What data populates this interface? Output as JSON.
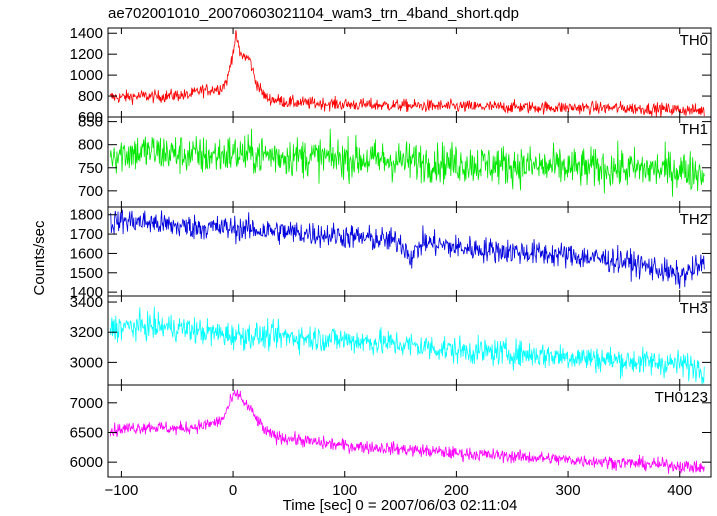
{
  "chart_data": {
    "type": "line",
    "title": "ae702001010_20070603021104_wam3_trn_4band_short.qdp",
    "xlabel": "Time [sec] 0 = 2007/06/03 02:11:04",
    "ylabel": "Counts/sec",
    "xlim": [
      -112,
      428
    ],
    "x_ticks": [
      -100,
      0,
      100,
      200,
      300,
      400
    ],
    "x_tick_labels": [
      "−100",
      "0",
      "100",
      "200",
      "300",
      "400"
    ],
    "panels": [
      {
        "name": "TH0",
        "color": "#ff0000",
        "ylim": [
          600,
          1450
        ],
        "y_ticks": [
          600,
          800,
          1000,
          1200,
          1400
        ],
        "y_tick_labels": [
          "600",
          "800",
          "1000",
          "1200",
          "1400"
        ],
        "x": [
          -110,
          -100,
          -90,
          -80,
          -70,
          -60,
          -50,
          -40,
          -30,
          -20,
          -10,
          -5,
          0,
          3,
          6,
          10,
          15,
          20,
          25,
          30,
          40,
          50,
          75,
          100,
          150,
          200,
          250,
          300,
          350,
          400,
          420
        ],
        "values": [
          790,
          790,
          795,
          800,
          795,
          800,
          810,
          805,
          850,
          860,
          880,
          960,
          1230,
          1380,
          1200,
          1180,
          1150,
          950,
          850,
          780,
          760,
          740,
          730,
          720,
          710,
          700,
          695,
          690,
          685,
          670,
          660
        ]
      },
      {
        "name": "TH1",
        "color": "#00e800",
        "ylim": [
          665,
          860
        ],
        "y_ticks": [
          700,
          750,
          800,
          850
        ],
        "y_tick_labels": [
          "700",
          "750",
          "800",
          "850"
        ],
        "x": [
          -110,
          -75,
          -50,
          -25,
          0,
          25,
          50,
          100,
          150,
          200,
          250,
          300,
          350,
          400,
          420
        ],
        "values": [
          780,
          785,
          780,
          775,
          780,
          778,
          775,
          770,
          765,
          760,
          755,
          750,
          748,
          745,
          740
        ]
      },
      {
        "name": "TH2",
        "color": "#0000dd",
        "ylim": [
          1380,
          1840
        ],
        "y_ticks": [
          1400,
          1500,
          1600,
          1700,
          1800
        ],
        "y_tick_labels": [
          "1400",
          "1500",
          "1600",
          "1700",
          "1800"
        ],
        "x": [
          -110,
          -100,
          -75,
          -50,
          0,
          50,
          100,
          150,
          160,
          170,
          200,
          250,
          300,
          350,
          380,
          400,
          420
        ],
        "values": [
          1760,
          1770,
          1760,
          1740,
          1730,
          1710,
          1690,
          1660,
          1580,
          1660,
          1630,
          1610,
          1590,
          1560,
          1520,
          1480,
          1540
        ]
      },
      {
        "name": "TH3",
        "color": "#00ffff",
        "ylim": [
          2850,
          3440
        ],
        "y_ticks": [
          3000,
          3200,
          3400
        ],
        "y_tick_labels": [
          "3000",
          "3200",
          "3400"
        ],
        "x": [
          -110,
          -75,
          -50,
          -25,
          0,
          50,
          100,
          150,
          200,
          250,
          300,
          350,
          400,
          420
        ],
        "values": [
          3230,
          3240,
          3230,
          3200,
          3180,
          3170,
          3150,
          3120,
          3080,
          3060,
          3040,
          3010,
          2990,
          2960
        ]
      },
      {
        "name": "TH0123",
        "color": "#ff00ff",
        "ylim": [
          5750,
          7300
        ],
        "y_ticks": [
          6000,
          6500,
          7000
        ],
        "y_tick_labels": [
          "6000",
          "6500",
          "7000"
        ],
        "x": [
          -110,
          -100,
          -75,
          -50,
          -25,
          -10,
          0,
          5,
          10,
          15,
          20,
          30,
          40,
          50,
          75,
          100,
          150,
          200,
          250,
          300,
          350,
          400,
          420
        ],
        "values": [
          6520,
          6560,
          6600,
          6560,
          6620,
          6700,
          7100,
          7150,
          7000,
          6900,
          6750,
          6500,
          6420,
          6400,
          6330,
          6280,
          6220,
          6150,
          6100,
          6040,
          5990,
          5940,
          5900
        ]
      }
    ]
  }
}
